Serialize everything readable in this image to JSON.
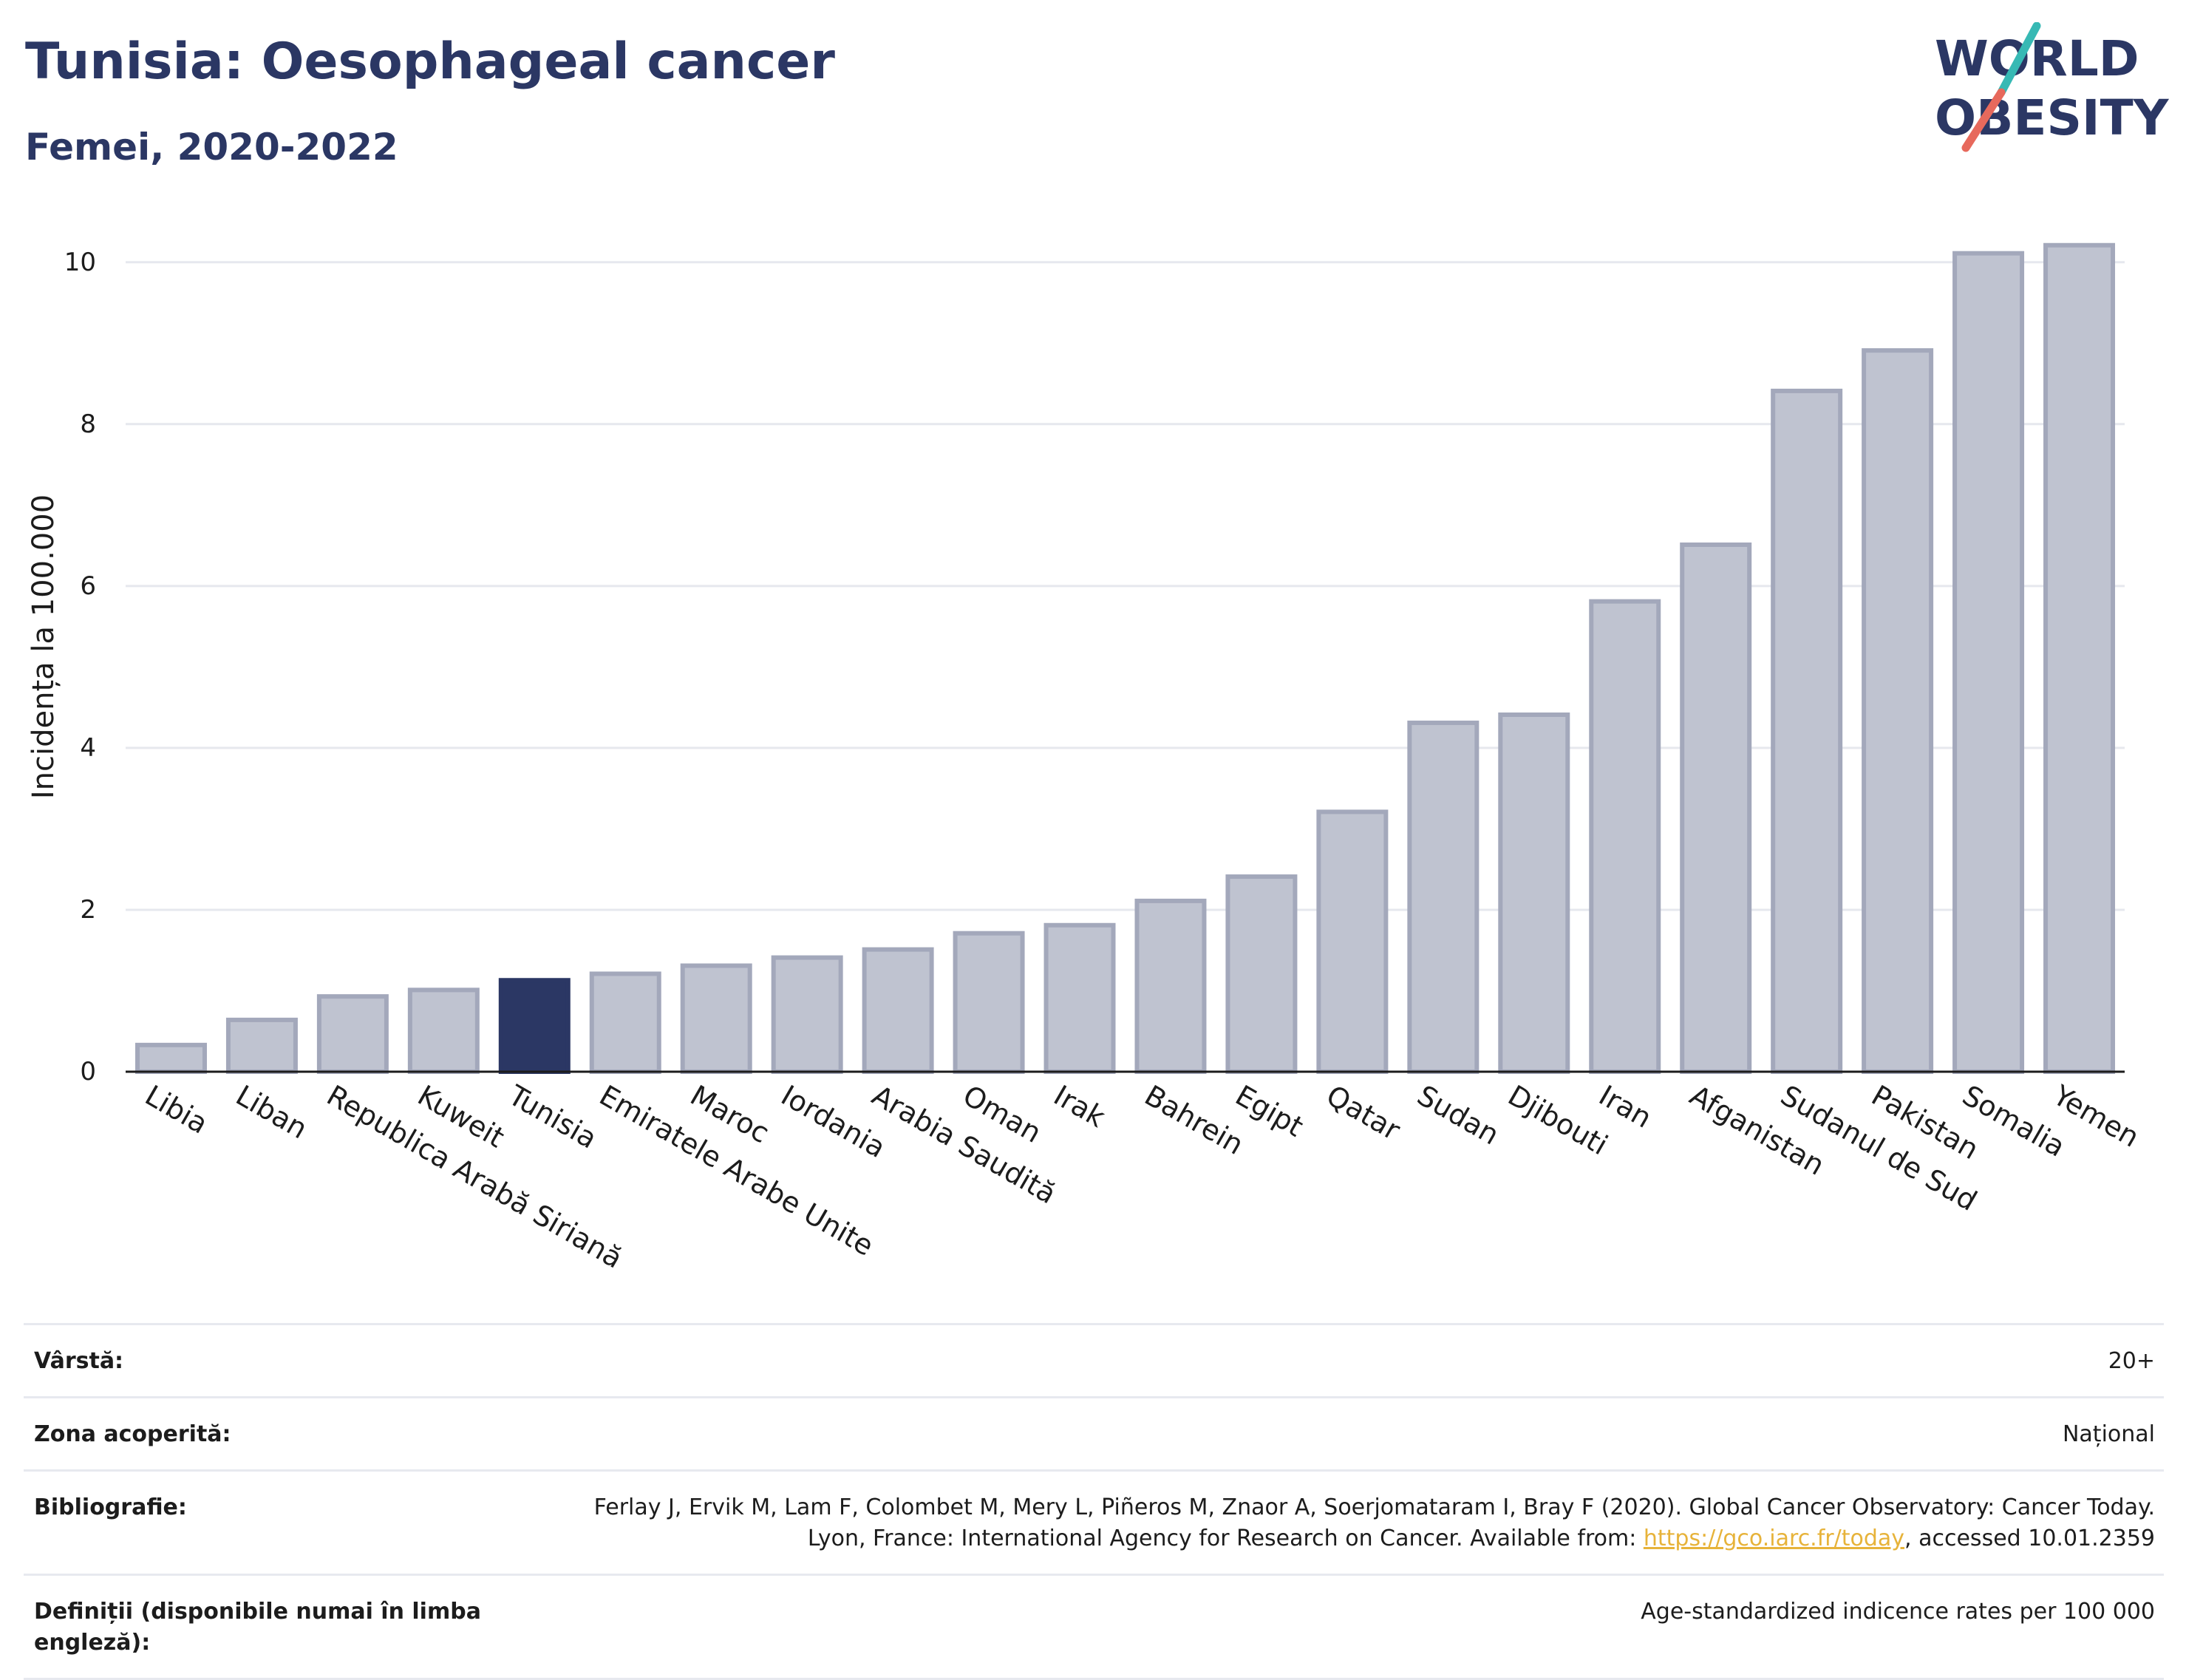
{
  "header": {
    "title": "Tunisia: Oesophageal cancer",
    "subtitle": "Femei, 2020-2022",
    "logo_text": [
      "WORLD",
      "OBESITY"
    ]
  },
  "chart_data": {
    "type": "bar",
    "ylabel": "Incidența la 100.000",
    "ylim": [
      0,
      10.5
    ],
    "yticks": [
      0,
      2,
      4,
      6,
      8,
      10
    ],
    "grid": true,
    "highlight": "Tunisia",
    "categories": [
      "Libia",
      "Liban",
      "Republica Arabă Siriană",
      "Kuweit",
      "Tunisia",
      "Emiratele Arabe Unite",
      "Maroc",
      "Iordania",
      "Arabia Saudită",
      "Oman",
      "Irak",
      "Bahrein",
      "Egipt",
      "Qatar",
      "Sudan",
      "Djibouti",
      "Iran",
      "Afganistan",
      "Sudanul de Sud",
      "Pakistan",
      "Somalia",
      "Yemen"
    ],
    "values": [
      0.33,
      0.64,
      0.93,
      1.01,
      1.13,
      1.21,
      1.31,
      1.41,
      1.51,
      1.71,
      1.81,
      2.11,
      2.41,
      3.21,
      4.31,
      4.41,
      5.81,
      6.51,
      8.41,
      8.91,
      10.11,
      10.21
    ]
  },
  "colors": {
    "bar": "#bfc3d0",
    "bar_border": "#a3a8bb",
    "highlight": "#2b3764",
    "logo_slash_top": "#37b9b4",
    "logo_slash_bottom": "#e7695c"
  },
  "meta": {
    "age_label": "Vârstă:",
    "age_value": "20+",
    "area_label": "Zona acoperită:",
    "area_value": "Național",
    "biblio_label": "Bibliografie:",
    "biblio_text_1": "Ferlay J, Ervik M, Lam F, Colombet M, Mery L, Piñeros M, Znaor A, Soerjomataram I, Bray F (2020). Global Cancer Observatory: Cancer Today. Lyon, France: International Agency for Research on Cancer. Available from: ",
    "biblio_link": "https://gco.iarc.fr/today",
    "biblio_text_2": ", accessed 10.01.2359",
    "def_label": "Definiții (disponibile numai în limba engleză):",
    "def_value": "Age-standardized indicence rates per 100 000"
  }
}
